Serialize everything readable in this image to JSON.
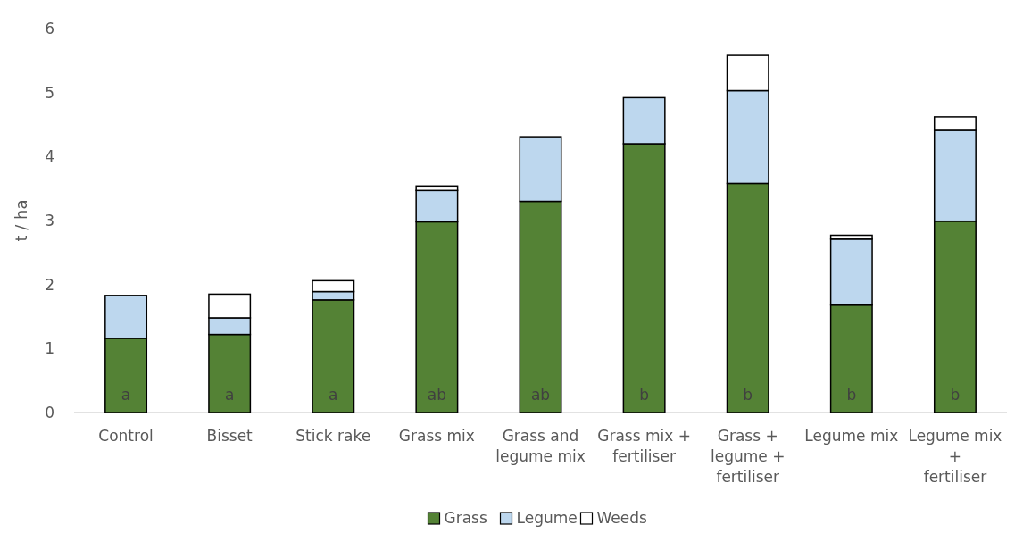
{
  "chart_data": {
    "type": "bar",
    "stacked": true,
    "ylabel": "t / ha",
    "categories": [
      "Control",
      "Bisset",
      "Stick rake",
      "Grass mix",
      "Grass and legume mix",
      "Grass mix + fertiliser",
      "Grass + legume + fertiliser",
      "Legume mix",
      "Legume mix + fertiliser"
    ],
    "series": [
      {
        "name": "Grass",
        "color": "#548235",
        "values": [
          1.16,
          1.22,
          1.76,
          2.98,
          3.3,
          4.2,
          3.58,
          1.68,
          2.99
        ],
        "value_labels": [
          "a",
          "a",
          "a",
          "ab",
          "ab",
          "b",
          "b",
          "b",
          "b"
        ]
      },
      {
        "name": "Legume",
        "color": "#bdd7ee",
        "values": [
          0.67,
          0.26,
          0.13,
          0.49,
          1.01,
          0.72,
          1.45,
          1.03,
          1.42
        ]
      },
      {
        "name": "Weeds",
        "color": "#ffffff",
        "values": [
          0,
          0.37,
          0.17,
          0.07,
          0,
          0,
          0.55,
          0.06,
          0.21
        ]
      }
    ],
    "ylim": [
      0,
      6
    ],
    "yticks": [
      0,
      1,
      2,
      3,
      4,
      5,
      6
    ],
    "grid": false,
    "legend": "bottom"
  }
}
